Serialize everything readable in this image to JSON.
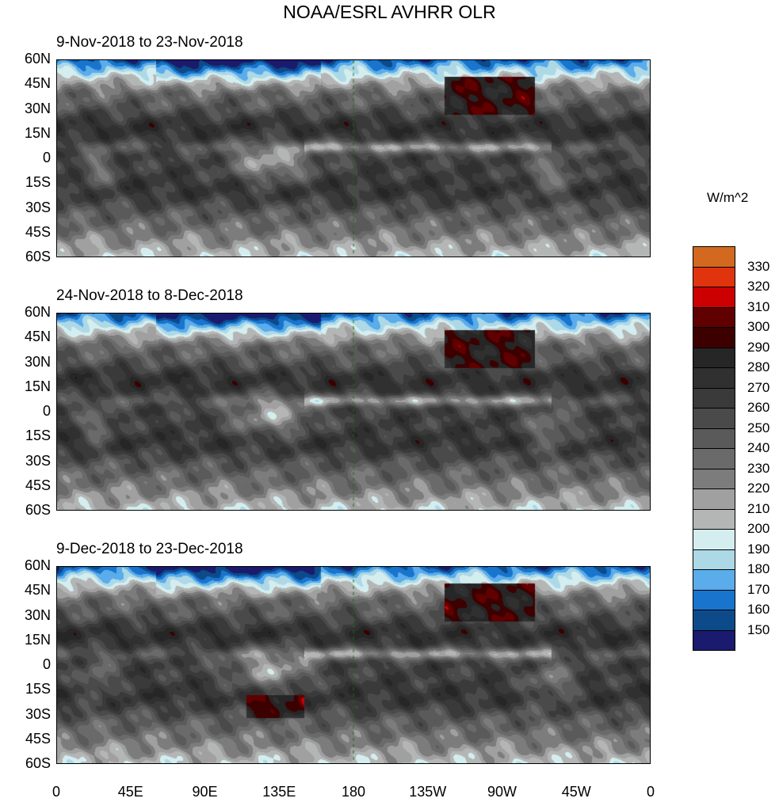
{
  "title": "NOAA/ESRL AVHRR OLR",
  "units": "W/m^2",
  "panels": [
    {
      "period": "9-Nov-2018 to 23-Nov-2018"
    },
    {
      "period": "24-Nov-2018 to 8-Dec-2018"
    },
    {
      "period": "9-Dec-2018 to 23-Dec-2018"
    }
  ],
  "lat_labels": [
    "60N",
    "45N",
    "30N",
    "15N",
    "0",
    "15S",
    "30S",
    "45S",
    "60S"
  ],
  "lon_labels": [
    "0",
    "45E",
    "90E",
    "135E",
    "180",
    "135W",
    "90W",
    "45W",
    "0"
  ],
  "colorbar": {
    "levels": [
      "330",
      "320",
      "310",
      "300",
      "290",
      "280",
      "270",
      "260",
      "250",
      "240",
      "230",
      "220",
      "210",
      "200",
      "190",
      "180",
      "170",
      "160",
      "150"
    ],
    "colors": [
      "#d2691e",
      "#e0340f",
      "#cc0000",
      "#600000",
      "#3c0000",
      "#262626",
      "#303030",
      "#3a3a3a",
      "#4a4a4a",
      "#5a5a5a",
      "#6a6a6a",
      "#7c7c7c",
      "#a0a0a0",
      "#b4b6b6",
      "#d4eef0",
      "#add8e6",
      "#5aacea",
      "#1874cd",
      "#0d4a8a",
      "#1a1a6e"
    ]
  },
  "colors": {
    "coast": "#1a6b1a"
  }
}
